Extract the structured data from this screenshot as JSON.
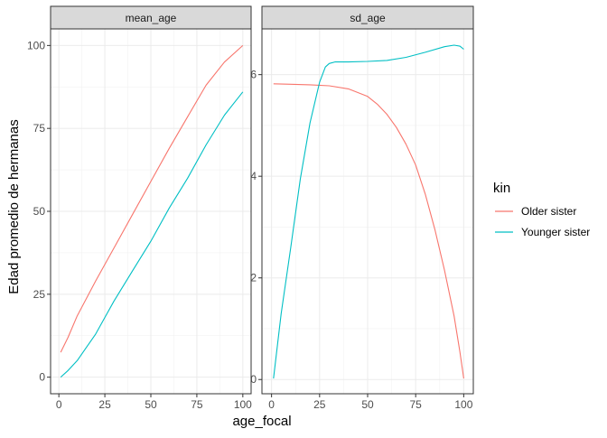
{
  "chart_data": {
    "type": "line",
    "xlabel": "age_focal",
    "ylabel": "Edad promedio de hermanas",
    "legend": {
      "title": "kin",
      "placement": "right",
      "entries": [
        {
          "name": "Older sister",
          "color": "#F8766D"
        },
        {
          "name": "Younger sister",
          "color": "#00BFC4"
        }
      ]
    },
    "grid": true,
    "facets": [
      {
        "title": "mean_age",
        "xlim": [
          -4.5,
          104.5
        ],
        "ylim": [
          -5,
          105
        ],
        "xticks": [
          0,
          25,
          50,
          75,
          100
        ],
        "yticks": [
          0,
          25,
          50,
          75,
          100
        ],
        "series": [
          {
            "name": "Older sister",
            "color": "#F8766D",
            "x": [
              1,
              5,
              10,
              20,
              30,
              40,
              50,
              60,
              70,
              80,
              90,
              100
            ],
            "y": [
              7.5,
              12,
              18.5,
              29,
              39,
              49,
              59,
              69,
              78.5,
              88,
              95,
              100
            ]
          },
          {
            "name": "Younger sister",
            "color": "#00BFC4",
            "x": [
              1,
              5,
              10,
              15,
              20,
              25,
              30,
              40,
              50,
              60,
              70,
              80,
              90,
              100
            ],
            "y": [
              0,
              2,
              5,
              9,
              13,
              18,
              23,
              32,
              41,
              51,
              60,
              70,
              79,
              86
            ]
          }
        ]
      },
      {
        "title": "sd_age",
        "xlim": [
          -5,
          105
        ],
        "ylim": [
          -0.28,
          6.9
        ],
        "xticks": [
          0,
          25,
          50,
          75,
          100
        ],
        "yticks": [
          0,
          2,
          4,
          6
        ],
        "series": [
          {
            "name": "Older sister",
            "color": "#F8766D",
            "x": [
              1,
              10,
              20,
              30,
              40,
              50,
              55,
              60,
              65,
              70,
              75,
              80,
              85,
              90,
              95,
              98,
              100
            ],
            "y": [
              5.82,
              5.81,
              5.8,
              5.78,
              5.72,
              5.57,
              5.42,
              5.22,
              4.96,
              4.63,
              4.22,
              3.65,
              2.95,
              2.15,
              1.25,
              0.55,
              0.02
            ]
          },
          {
            "name": "Younger sister",
            "color": "#00BFC4",
            "x": [
              1,
              5,
              10,
              15,
              20,
              25,
              28,
              30,
              33,
              40,
              50,
              60,
              70,
              80,
              90,
              95,
              98,
              100
            ],
            "y": [
              0.02,
              1.3,
              2.6,
              3.95,
              5.05,
              5.85,
              6.15,
              6.22,
              6.25,
              6.25,
              6.26,
              6.28,
              6.34,
              6.44,
              6.55,
              6.58,
              6.56,
              6.5
            ]
          }
        ]
      }
    ]
  }
}
